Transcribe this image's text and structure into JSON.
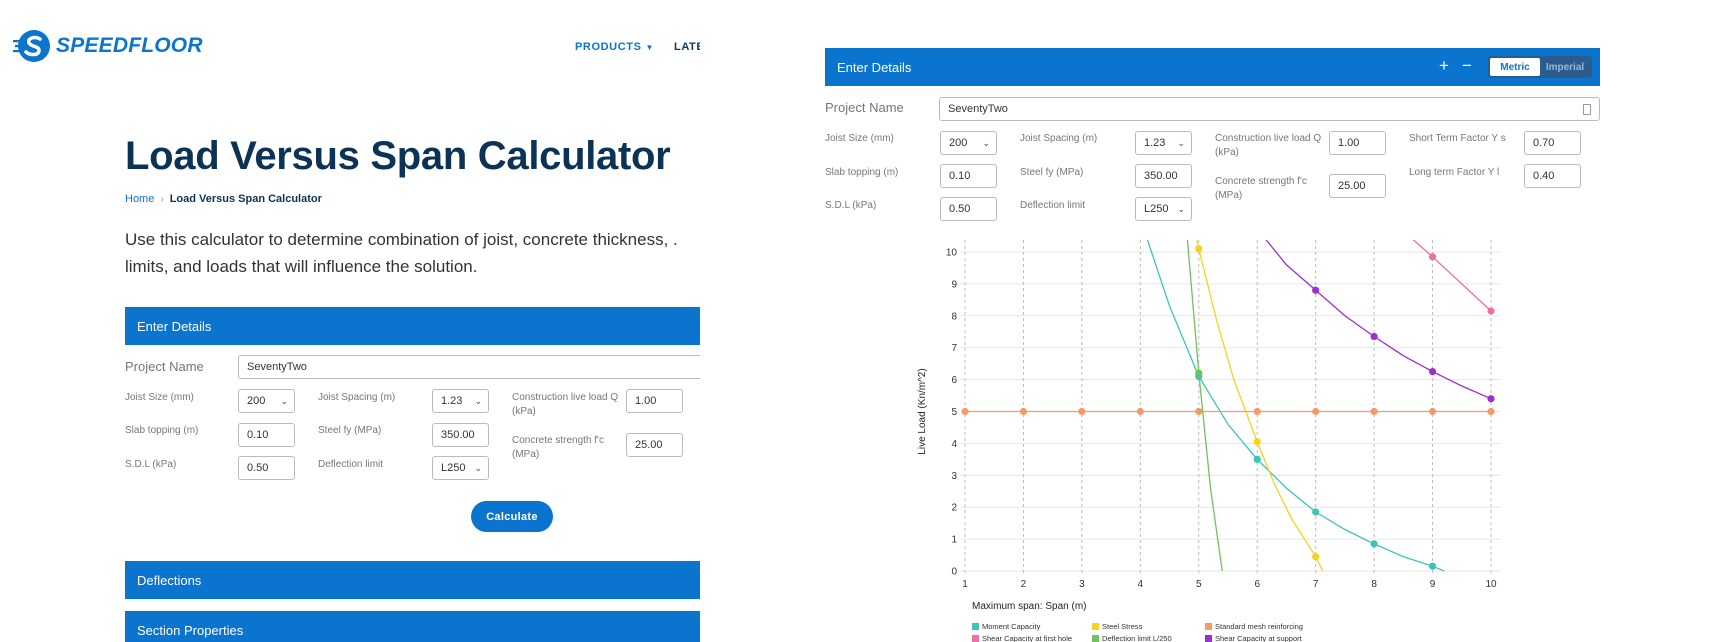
{
  "brand": {
    "name": "SPEEDFLOOR"
  },
  "nav": {
    "products": "PRODUCTS",
    "latest": "LATE"
  },
  "page": {
    "title": "Load Versus Span Calculator",
    "breadcrumb": {
      "home": "Home",
      "separator": "›",
      "current": "Load Versus Span Calculator"
    },
    "intro_line1": "Use this calculator to determine combination of joist, concrete thickness, .",
    "intro_line2": "limits, and loads that will influence the solution."
  },
  "form": {
    "header": "Enter Details",
    "project_name_label": "Project Name",
    "project_name_value": "SeventyTwo",
    "joist_size_label": "Joist Size (mm)",
    "joist_size_value": "200",
    "joist_spacing_label": "Joist Spacing (m)",
    "joist_spacing_value": "1.23",
    "construction_load_label": "Construction live load Q (kPa)",
    "construction_load_value": "1.00",
    "short_term_label": "Short Term Factor Y s",
    "short_term_value": "0.70",
    "slab_topping_label": "Slab topping (m)",
    "slab_topping_value": "0.10",
    "steel_fy_label": "Steel fy (MPa)",
    "steel_fy_value": "350.00",
    "concrete_strength_label": "Concrete strength f'c (MPa)",
    "concrete_strength_value": "25.00",
    "long_term_label": "Long term Factor Y l",
    "long_term_value": "0.40",
    "sdl_label": "S.D.L (kPa)",
    "sdl_value": "0.50",
    "deflection_label": "Deflection limit",
    "deflection_value": "L250",
    "calculate": "Calculate",
    "plus": "+",
    "minus": "−",
    "metric": "Metric",
    "imperial": "Imperial"
  },
  "sections": {
    "deflections": "Deflections",
    "section_properties": "Section Properties"
  },
  "colors": {
    "brand_blue": "#0a74cf",
    "title_navy": "#0c3356"
  },
  "chart_data": {
    "type": "line",
    "xlabel": "Maximum span: Span (m)",
    "ylabel": "Live Load (Kn/m^2)",
    "xlim": [
      1,
      10
    ],
    "ylim": [
      0,
      10
    ],
    "x_ticks": [
      1,
      2,
      3,
      4,
      5,
      6,
      7,
      8,
      9,
      10
    ],
    "y_ticks": [
      0,
      1,
      2,
      3,
      4,
      5,
      6,
      7,
      8,
      9,
      10
    ],
    "grid": "dashed vertical, solid horizontal",
    "legend_position": "bottom",
    "series": [
      {
        "name": "Moment Capacity",
        "color": "#3cc4b8",
        "marker_x": [
          5,
          6,
          7,
          8,
          9
        ],
        "marker_y": [
          6.1,
          3.5,
          1.85,
          0.85,
          0.15
        ],
        "curve_x": [
          4.1,
          4.5,
          5,
          5.5,
          6,
          6.5,
          7,
          7.5,
          8,
          8.5,
          9,
          9.2
        ],
        "curve_y": [
          10.5,
          8.3,
          6.1,
          4.6,
          3.5,
          2.6,
          1.85,
          1.3,
          0.85,
          0.45,
          0.15,
          0
        ]
      },
      {
        "name": "Steel Stress",
        "color": "#f6d21a",
        "marker_x": [
          5,
          6,
          7
        ],
        "marker_y": [
          10.1,
          4.05,
          0.45
        ],
        "curve_x": [
          4.95,
          5,
          5.3,
          5.6,
          6,
          6.3,
          6.6,
          7,
          7.12
        ],
        "curve_y": [
          10.5,
          10.1,
          7.9,
          6.0,
          4.05,
          2.7,
          1.6,
          0.45,
          0
        ]
      },
      {
        "name": "Standard mesh reinforcing",
        "color": "#f59a6b",
        "marker_x": [
          1,
          2,
          3,
          4,
          5,
          6,
          7,
          8,
          9,
          10
        ],
        "marker_y": [
          5,
          5,
          5,
          5,
          5,
          5,
          5,
          5,
          5,
          5
        ],
        "curve_x": [
          1,
          10
        ],
        "curve_y": [
          5,
          5
        ]
      },
      {
        "name": "Shear Capacity at first hole",
        "color": "#ee6fa3",
        "marker_x": [
          9,
          10
        ],
        "marker_y": [
          9.85,
          8.15
        ],
        "curve_x": [
          8.6,
          9,
          9.5,
          10
        ],
        "curve_y": [
          10.5,
          9.85,
          9.0,
          8.15
        ]
      },
      {
        "name": "Deflection limit L/250",
        "color": "#6ec45a",
        "marker_x": [
          5
        ],
        "marker_y": [
          6.2
        ],
        "curve_x": [
          4.8,
          5,
          5.2,
          5.4
        ],
        "curve_y": [
          10.5,
          6.2,
          2.6,
          0
        ]
      },
      {
        "name": "Shear Capacity at support",
        "color": "#9b2fd0",
        "marker_x": [
          7,
          8,
          9,
          10
        ],
        "marker_y": [
          8.8,
          7.35,
          6.25,
          5.4
        ],
        "curve_x": [
          6.1,
          6.5,
          7,
          7.5,
          8,
          8.5,
          9,
          9.5,
          10
        ],
        "curve_y": [
          10.5,
          9.6,
          8.8,
          8.0,
          7.35,
          6.75,
          6.25,
          5.8,
          5.4
        ]
      }
    ]
  }
}
